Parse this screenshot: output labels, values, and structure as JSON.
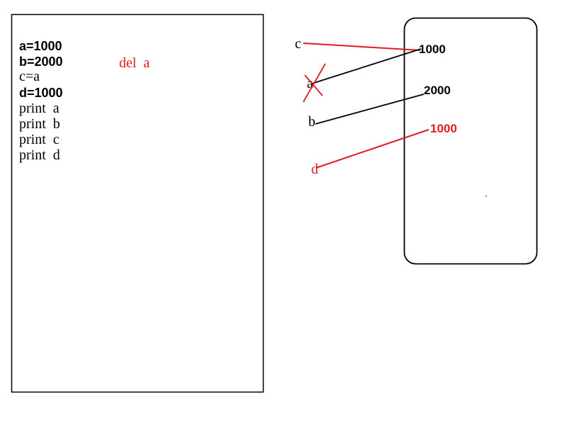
{
  "colors": {
    "black": "#000000",
    "red": "#e01c1c",
    "background": "#ffffff"
  },
  "code_panel": {
    "lines": [
      "a=1000",
      "b=2000",
      "c=a",
      "d=1000",
      "print  a",
      "print  b",
      "print  c",
      "print  d"
    ],
    "annotation": "del  a"
  },
  "variables": {
    "a": "a",
    "b": "b",
    "c": "c",
    "d": "d"
  },
  "memory": {
    "value_1000": "1000",
    "value_2000": "2000",
    "value_1000_new": "1000"
  }
}
